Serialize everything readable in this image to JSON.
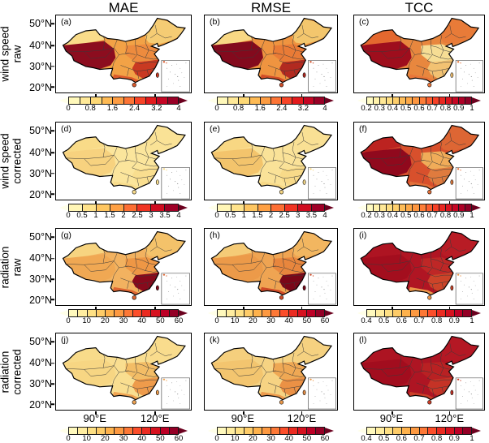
{
  "titles": [
    "MAE",
    "RMSE",
    "TCC"
  ],
  "rows": [
    {
      "line1": "wind speed",
      "line2": "raw"
    },
    {
      "line1": "wind speed",
      "line2": "corrected"
    },
    {
      "line1": "radiation",
      "line2": "raw"
    },
    {
      "line1": "radiation",
      "line2": "corrected"
    }
  ],
  "lat_labels": [
    "50°N",
    "40°N",
    "30°N",
    "20°N"
  ],
  "lon_labels": [
    "90°E",
    "120°E"
  ],
  "colorbars": {
    "err4_raw": {
      "min": 0,
      "max": 4,
      "ticks": [
        "0",
        "0.8",
        "1.6",
        "2.4",
        "3.2",
        "4"
      ],
      "left_cap": "#FFFFE8",
      "right_cap": "#6B001E",
      "segments": [
        "#FFF8BA",
        "#FFE998",
        "#FED976",
        "#FEBA54",
        "#FD9C42",
        "#FD7435",
        "#F74427",
        "#E31A1C",
        "#C50524",
        "#980026"
      ]
    },
    "err4_corr": {
      "min": 0,
      "max": 4,
      "ticks": [
        "0",
        "0.5",
        "1",
        "1.5",
        "2",
        "2.5",
        "3",
        "3.5",
        "4"
      ],
      "left_cap": "#FFFFE8",
      "right_cap": "#6B001E",
      "segments": [
        "#FFF6B6",
        "#FFE38B",
        "#FEC661",
        "#FEA044",
        "#FD6E33",
        "#F03423",
        "#D00D21",
        "#9F0026"
      ]
    },
    "tcc_02": {
      "min": 0.2,
      "max": 1,
      "ticks": [
        "0.2",
        "0.3",
        "0.4",
        "0.5",
        "0.6",
        "0.7",
        "0.8",
        "0.9",
        "1"
      ],
      "left_cap": "#FFFFE8",
      "right_cap": "#6B001E",
      "segments": [
        "#FFFBC1",
        "#FFF2AB",
        "#FFE896",
        "#FEDE81",
        "#FECF6C",
        "#FEBC57",
        "#FEA948",
        "#FD9640",
        "#FD7D38",
        "#FC5E2F",
        "#F64127",
        "#E92720",
        "#DA141F",
        "#C70724",
        "#AE0026",
        "#8E0026"
      ]
    },
    "err60": {
      "min": 0,
      "max": 60,
      "ticks": [
        "0",
        "10",
        "20",
        "30",
        "40",
        "50",
        "60"
      ],
      "left_cap": "#FFFFE8",
      "right_cap": "#6B001E",
      "segments": [
        "#FFF9BD",
        "#FFEDA0",
        "#FEE084",
        "#FECC68",
        "#FEB24C",
        "#FD9941",
        "#FD7836",
        "#FC4E2A",
        "#EB2B21",
        "#D6111F",
        "#BD0026",
        "#940026"
      ]
    },
    "tcc_04": {
      "min": 0.4,
      "max": 1,
      "ticks": [
        "0.4",
        "0.5",
        "0.6",
        "0.7",
        "0.8",
        "0.9",
        "1"
      ],
      "left_cap": "#FFFFE8",
      "right_cap": "#6B001E",
      "segments": [
        "#FFF9BD",
        "#FFEDA0",
        "#FEE084",
        "#FECC68",
        "#FEB24C",
        "#FD9941",
        "#FD7836",
        "#FC4E2A",
        "#EB2B21",
        "#D6111F",
        "#BD0026",
        "#940026"
      ]
    }
  },
  "panels": {
    "a": {
      "label": "(a)",
      "metric": "MAE",
      "variable": "wind speed raw",
      "colorbar": "err4_raw",
      "zones": {
        "base": "#F2A246",
        "northwest": "#F9DC8A",
        "west_dark": "#8C0D1F",
        "northeast": "#F5CC74",
        "central": "#ED8B3E",
        "southeast": "#C93A22",
        "south": "#DB5A2C"
      }
    },
    "b": {
      "label": "(b)",
      "metric": "RMSE",
      "variable": "wind speed raw",
      "colorbar": "err4_raw",
      "zones": {
        "base": "#EF9440",
        "northwest": "#F8D884",
        "west_dark": "#830A1D",
        "northeast": "#F3C66D",
        "central": "#E97B36",
        "southeast": "#B22A20",
        "south": "#D14E28"
      }
    },
    "c": {
      "label": "(c)",
      "metric": "TCC",
      "variable": "wind speed raw",
      "colorbar": "tcc_02",
      "zones": {
        "base": "#E8873E",
        "northwest": "#E4682F",
        "west_dark": "#9E0E1D",
        "northeast": "#E87B38",
        "central": "#F6DD94",
        "southeast": "#F2C272",
        "south": "#E8763A"
      }
    },
    "d": {
      "label": "(d)",
      "metric": "MAE",
      "variable": "wind speed corrected",
      "colorbar": "err4_corr",
      "zones": {
        "base": "#FBE59C",
        "northwest": "#F9DB88",
        "west_dark": "#F7D27F",
        "northeast": "#FAE296",
        "central": "#FBE59C",
        "southeast": "#F9DE8F",
        "south": "#F8DC8C"
      }
    },
    "e": {
      "label": "(e)",
      "metric": "RMSE",
      "variable": "wind speed corrected",
      "colorbar": "err4_corr",
      "zones": {
        "base": "#FAE298",
        "northwest": "#F8D783",
        "west_dark": "#F3C46C",
        "northeast": "#F9E094",
        "central": "#FAE298",
        "southeast": "#F8DA89",
        "south": "#F7D885"
      }
    },
    "f": {
      "label": "(f)",
      "metric": "TCC",
      "variable": "wind speed corrected",
      "colorbar": "tcc_02",
      "zones": {
        "base": "#D8502C",
        "northwest": "#BC2320",
        "west_dark": "#90091D",
        "northeast": "#DD6634",
        "central": "#F0AC59",
        "southeast": "#DF7B3E",
        "south": "#E27039"
      }
    },
    "g": {
      "label": "(g)",
      "metric": "MAE",
      "variable": "radiation raw",
      "colorbar": "err60",
      "zones": {
        "base": "#F2B260",
        "northwest": "#F7D480",
        "west_dark": "#F0A853",
        "northeast": "#F4C26A",
        "central": "#EE9745",
        "southeast": "#870A1C",
        "south": "#DE6632"
      }
    },
    "h": {
      "label": "(h)",
      "metric": "RMSE",
      "variable": "radiation raw",
      "colorbar": "err60",
      "zones": {
        "base": "#EFA452",
        "northwest": "#F5CB77",
        "west_dark": "#EC9A49",
        "northeast": "#F2B660",
        "central": "#E8863D",
        "southeast": "#7A0718",
        "south": "#CE4A27"
      }
    },
    "i": {
      "label": "(i)",
      "metric": "TCC",
      "variable": "radiation raw",
      "colorbar": "tcc_04",
      "zones": {
        "base": "#B01523",
        "northwest": "#AE1422",
        "west_dark": "#A30E1E",
        "northeast": "#B81C25",
        "central": "#BE2726",
        "southeast": "#CC4429",
        "south": "#EC9549"
      }
    },
    "j": {
      "label": "(j)",
      "metric": "MAE",
      "variable": "radiation corrected",
      "colorbar": "err60",
      "zones": {
        "base": "#F9DE90",
        "northwest": "#F8DB8A",
        "west_dark": "#F7D683",
        "northeast": "#F9DC8D",
        "central": "#F3BD66",
        "southeast": "#EE9B4B",
        "south": "#F0A452"
      }
    },
    "k": {
      "label": "(k)",
      "metric": "RMSE",
      "variable": "radiation corrected",
      "colorbar": "err60",
      "zones": {
        "base": "#F6D383",
        "northwest": "#F5CF7D",
        "west_dark": "#F3C56F",
        "northeast": "#F5D180",
        "central": "#EFA854",
        "southeast": "#EB9145",
        "south": "#ED9A4C"
      }
    },
    "l": {
      "label": "(l)",
      "metric": "TCC",
      "variable": "radiation corrected",
      "colorbar": "tcc_04",
      "zones": {
        "base": "#AE1523",
        "northwest": "#AD1422",
        "west_dark": "#A20D1E",
        "northeast": "#B41824",
        "central": "#B92123",
        "southeast": "#C53326",
        "south": "#CB3F27"
      }
    }
  },
  "chart_data": {
    "type": "heatmap",
    "layout": "4x3 grid of filled-contour maps of China with South China Sea inset in each panel",
    "columns": [
      "MAE",
      "RMSE",
      "TCC"
    ],
    "rows": [
      "wind speed raw",
      "wind speed corrected",
      "radiation raw",
      "radiation corrected"
    ],
    "axes": {
      "lat_ticks": [
        "50°N",
        "40°N",
        "30°N",
        "20°N"
      ],
      "lon_ticks": [
        "90°E",
        "120°E"
      ]
    },
    "colormap": "YlOrRd",
    "panels": [
      {
        "id": "(a)",
        "metric": "MAE",
        "variable": "wind speed raw",
        "scale": [
          0,
          4
        ],
        "tick_step_labels": [
          0,
          0.8,
          1.6,
          2.4,
          3.2,
          4
        ],
        "pattern": "3-4 over Tibetan Plateau, southern Xinjiang and north-China mountains; 0.8-1.6 in northeast and Tarim rim; 1.6-3 east and southeast"
      },
      {
        "id": "(b)",
        "metric": "RMSE",
        "variable": "wind speed raw",
        "scale": [
          0,
          4
        ],
        "tick_step_labels": [
          0,
          0.8,
          1.6,
          2.4,
          3.2,
          4
        ],
        "pattern": "similar to (a) but broader 3-4 area over west and central China"
      },
      {
        "id": "(c)",
        "metric": "TCC",
        "variable": "wind speed raw",
        "scale": [
          0.2,
          1
        ],
        "tick_step_labels": [
          0.2,
          0.3,
          0.4,
          0.5,
          0.6,
          0.7,
          0.8,
          0.9,
          1
        ],
        "pattern": "0.9-1 over Tarim Basin; 0.6-0.8 across west, north and northeast; 0.3-0.5 over central-eastern plains"
      },
      {
        "id": "(d)",
        "metric": "MAE",
        "variable": "wind speed corrected",
        "scale": [
          0,
          4
        ],
        "tick_step_labels": [
          0,
          0.5,
          1,
          1.5,
          2,
          2.5,
          3,
          3.5,
          4
        ],
        "pattern": "nearly uniform 0.25-0.75 countrywide"
      },
      {
        "id": "(e)",
        "metric": "RMSE",
        "variable": "wind speed corrected",
        "scale": [
          0,
          4
        ],
        "tick_step_labels": [
          0,
          0.5,
          1,
          1.5,
          2,
          2.5,
          3,
          3.5,
          4
        ],
        "pattern": "nearly uniform 0.5-1, slightly higher (~1.5) in Tarim Basin"
      },
      {
        "id": "(f)",
        "metric": "TCC",
        "variable": "wind speed corrected",
        "scale": [
          0.2,
          1
        ],
        "tick_step_labels": [
          0.2,
          0.3,
          0.4,
          0.5,
          0.6,
          0.7,
          0.8,
          0.9,
          1
        ],
        "pattern": "0.8-1 over west/north (0.95+ Tarim); 0.5-0.7 central-east; 0.7-0.9 south"
      },
      {
        "id": "(g)",
        "metric": "MAE",
        "variable": "radiation raw",
        "scale": [
          0,
          60
        ],
        "tick_step_labels": [
          0,
          10,
          20,
          30,
          40,
          50,
          60
        ],
        "pattern": "50-60+ over southeast China; 25-40 central and south; 10-25 north and west"
      },
      {
        "id": "(h)",
        "metric": "RMSE",
        "variable": "radiation raw",
        "scale": [
          0,
          60
        ],
        "tick_step_labels": [
          0,
          10,
          20,
          30,
          40,
          50,
          60
        ],
        "pattern": "like (g) with larger 55-60+ dark area over southeast"
      },
      {
        "id": "(i)",
        "metric": "TCC",
        "variable": "radiation raw",
        "scale": [
          0.4,
          1
        ],
        "tick_step_labels": [
          0.4,
          0.5,
          0.6,
          0.7,
          0.8,
          0.9,
          1
        ],
        "pattern": "0.9-1 over most of China; 0.6-0.8 along southern belt"
      },
      {
        "id": "(j)",
        "metric": "MAE",
        "variable": "radiation corrected",
        "scale": [
          0,
          60
        ],
        "tick_step_labels": [
          0,
          10,
          20,
          30,
          40,
          50,
          60
        ],
        "pattern": "5-15 north and west; 20-35 southeast"
      },
      {
        "id": "(k)",
        "metric": "RMSE",
        "variable": "radiation corrected",
        "scale": [
          0,
          60
        ],
        "tick_step_labels": [
          0,
          10,
          20,
          30,
          40,
          50,
          60
        ],
        "pattern": "10-20 north and west; 25-40 southeast"
      },
      {
        "id": "(l)",
        "metric": "TCC",
        "variable": "radiation corrected",
        "scale": [
          0.4,
          1
        ],
        "tick_step_labels": [
          0.4,
          0.5,
          0.6,
          0.7,
          0.8,
          0.9,
          1
        ],
        "pattern": "0.9-1 nearly everywhere; ~0.8-0.9 along southeast coast"
      }
    ]
  }
}
